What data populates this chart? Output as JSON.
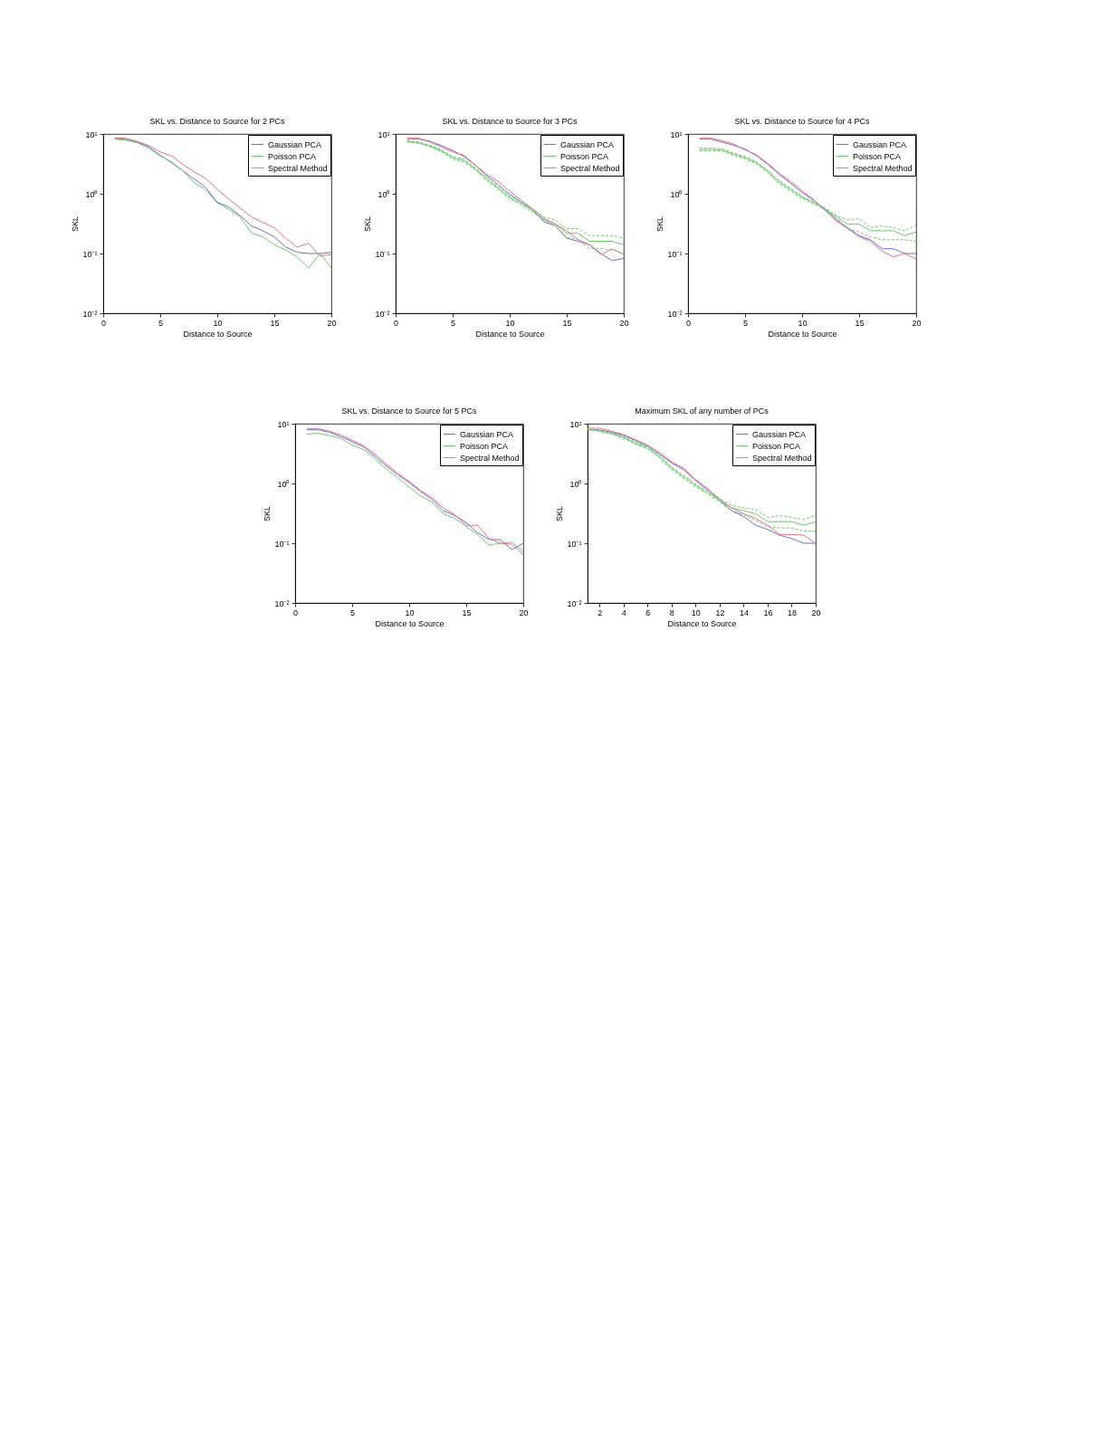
{
  "chart_data": [
    {
      "type": "line",
      "title": "SKL vs. Distance to Source for 2 PCs",
      "xlabel": "Distance to Source",
      "ylabel": "SKL",
      "log": "y",
      "legend": "top right",
      "x": [
        1,
        2,
        3,
        4,
        5,
        6,
        7,
        8,
        9,
        10,
        11,
        12,
        13,
        14,
        15,
        16,
        17,
        18,
        19,
        20
      ],
      "xlim": [
        0,
        20
      ],
      "xticks": [
        0,
        5,
        10,
        15,
        20
      ],
      "ylim": [
        0.01,
        10
      ],
      "yticks": [
        {
          "value": 0.01,
          "label": "10⁻²"
        },
        {
          "value": 0.1,
          "label": "10⁻¹"
        },
        {
          "value": 1,
          "label": "10⁰"
        },
        {
          "value": 10,
          "label": "10¹"
        }
      ],
      "series": [
        {
          "name": "Gaussian PCA",
          "color": "#6b6be6",
          "values": [
            8.4,
            8.1,
            7.3,
            6.1,
            4.4,
            3.3,
            2.4,
            1.75,
            1.27,
            0.72,
            0.6,
            0.43,
            0.29,
            0.24,
            0.19,
            0.128,
            0.105,
            0.1,
            0.1,
            0.104
          ]
        },
        {
          "name": "Poisson PCA",
          "color": "#66cc66",
          "values": [
            8.2,
            7.9,
            7.1,
            5.8,
            4.3,
            3.4,
            2.4,
            1.52,
            1.15,
            0.7,
            0.55,
            0.41,
            0.22,
            0.19,
            0.14,
            0.115,
            0.088,
            0.057,
            0.1,
            0.057
          ]
        },
        {
          "name": "Spectral Method",
          "color": "#e8707f",
          "values": [
            8.6,
            8.5,
            7.5,
            6.4,
            5.0,
            4.3,
            3.1,
            2.3,
            1.8,
            1.19,
            0.82,
            0.58,
            0.41,
            0.33,
            0.27,
            0.18,
            0.128,
            0.148,
            0.091,
            0.096
          ]
        }
      ]
    },
    {
      "type": "line",
      "title": "SKL vs. Distance to Source for 3 PCs",
      "xlabel": "Distance to Source",
      "ylabel": "SKL",
      "log": "y",
      "legend": "top right",
      "x": [
        1,
        2,
        3,
        4,
        5,
        6,
        7,
        8,
        9,
        10,
        11,
        12,
        13,
        14,
        15,
        16,
        17,
        18,
        19,
        20
      ],
      "xlim": [
        0,
        20
      ],
      "xticks": [
        0,
        5,
        10,
        15,
        20
      ],
      "ylim": [
        0.01,
        10
      ],
      "yticks": [
        {
          "value": 0.01,
          "label": "10⁻²"
        },
        {
          "value": 0.1,
          "label": "10⁻¹"
        },
        {
          "value": 1,
          "label": "10⁰"
        },
        {
          "value": 10,
          "label": "10¹"
        }
      ],
      "series": [
        {
          "name": "Gaussian PCA",
          "color": "#6b6be6",
          "values": [
            8.2,
            8.2,
            7.6,
            6.4,
            5.3,
            4.2,
            3.0,
            2.0,
            1.4,
            0.98,
            0.73,
            0.55,
            0.34,
            0.29,
            0.18,
            0.16,
            0.14,
            0.1,
            0.076,
            0.083
          ]
        },
        {
          "name": "Poisson PCA",
          "color": "#66cc66",
          "values": [
            7.5,
            7.2,
            6.3,
            5.3,
            4.0,
            3.6,
            2.6,
            1.75,
            1.24,
            0.87,
            0.69,
            0.52,
            0.37,
            0.31,
            0.22,
            0.22,
            0.16,
            0.16,
            0.16,
            0.14
          ]
        },
        {
          "name": "Spectral Method",
          "color": "#e8707f",
          "values": [
            8.6,
            8.6,
            7.3,
            6.1,
            5.0,
            4.4,
            3.0,
            2.1,
            1.6,
            1.1,
            0.78,
            0.56,
            0.39,
            0.31,
            0.24,
            0.17,
            0.14,
            0.096,
            0.12,
            0.096
          ]
        },
        {
          "color": "#66cc66",
          "line_style": "dashed",
          "values": [
            7.7,
            7.4,
            6.5,
            5.5,
            4.2,
            3.8,
            2.7,
            1.85,
            1.3,
            0.92,
            0.73,
            0.55,
            0.41,
            0.36,
            0.26,
            0.26,
            0.2,
            0.2,
            0.2,
            0.18
          ]
        },
        {
          "color": "#66cc66",
          "line_style": "dashed",
          "values": [
            7.3,
            7.0,
            6.1,
            5.1,
            3.8,
            3.4,
            2.5,
            1.65,
            1.17,
            0.82,
            0.65,
            0.49,
            0.36,
            0.29,
            0.19,
            0.17,
            0.12,
            0.12,
            0.115,
            0.1
          ]
        }
      ]
    },
    {
      "type": "line",
      "title": "SKL vs. Distance to Source for 4 PCs",
      "xlabel": "Distance to Source",
      "ylabel": "SKL",
      "log": "y",
      "legend": "top right",
      "x": [
        1,
        2,
        3,
        4,
        5,
        6,
        7,
        8,
        9,
        10,
        11,
        12,
        13,
        14,
        15,
        16,
        17,
        18,
        19,
        20
      ],
      "xlim": [
        0,
        20
      ],
      "xticks": [
        0,
        5,
        10,
        15,
        20
      ],
      "ylim": [
        0.01,
        10
      ],
      "yticks": [
        {
          "value": 0.01,
          "label": "10⁻²"
        },
        {
          "value": 0.1,
          "label": "10⁻¹"
        },
        {
          "value": 1,
          "label": "10⁰"
        },
        {
          "value": 10,
          "label": "10¹"
        }
      ],
      "series": [
        {
          "name": "Gaussian PCA",
          "color": "#6b6be6",
          "values": [
            8.2,
            8.2,
            7.3,
            6.5,
            5.6,
            4.3,
            3.1,
            2.1,
            1.5,
            1.05,
            0.78,
            0.55,
            0.37,
            0.27,
            0.2,
            0.17,
            0.12,
            0.12,
            0.1,
            0.1
          ]
        },
        {
          "name": "Poisson PCA",
          "color": "#66cc66",
          "values": [
            5.5,
            5.5,
            5.4,
            4.6,
            4.0,
            3.3,
            2.35,
            1.56,
            1.17,
            0.87,
            0.71,
            0.56,
            0.41,
            0.31,
            0.31,
            0.24,
            0.24,
            0.24,
            0.2,
            0.23
          ]
        },
        {
          "name": "Spectral Method",
          "color": "#e8707f",
          "values": [
            8.6,
            8.6,
            7.7,
            6.8,
            5.4,
            4.5,
            3.2,
            2.2,
            1.6,
            1.12,
            0.8,
            0.53,
            0.35,
            0.26,
            0.19,
            0.16,
            0.11,
            0.088,
            0.1,
            0.081
          ]
        },
        {
          "color": "#66cc66",
          "line_style": "dashed",
          "values": [
            5.8,
            5.8,
            5.7,
            4.8,
            4.2,
            3.45,
            2.45,
            1.65,
            1.23,
            0.91,
            0.74,
            0.58,
            0.43,
            0.37,
            0.38,
            0.27,
            0.29,
            0.27,
            0.24,
            0.3
          ]
        },
        {
          "color": "#66cc66",
          "line_style": "dashed",
          "values": [
            5.2,
            5.2,
            5.1,
            4.4,
            3.8,
            3.15,
            2.25,
            1.48,
            1.1,
            0.83,
            0.68,
            0.54,
            0.39,
            0.26,
            0.23,
            0.19,
            0.17,
            0.17,
            0.17,
            0.16
          ]
        }
      ]
    },
    {
      "type": "line",
      "title": "SKL vs. Distance to Source for 5 PCs",
      "xlabel": "Distance to Source",
      "ylabel": "SKL",
      "log": "y",
      "legend": "top right",
      "x": [
        1,
        2,
        3,
        4,
        5,
        6,
        7,
        8,
        9,
        10,
        11,
        12,
        13,
        14,
        15,
        16,
        17,
        18,
        19,
        20
      ],
      "xlim": [
        0,
        20
      ],
      "xticks": [
        0,
        5,
        10,
        15,
        20
      ],
      "ylim": [
        0.01,
        10
      ],
      "yticks": [
        {
          "value": 0.01,
          "label": "10⁻²"
        },
        {
          "value": 0.1,
          "label": "10⁻¹"
        },
        {
          "value": 1,
          "label": "10⁰"
        },
        {
          "value": 10,
          "label": "10¹"
        }
      ],
      "series": [
        {
          "name": "Gaussian PCA",
          "color": "#6b6be6",
          "values": [
            7.9,
            7.9,
            7.2,
            6.1,
            5.0,
            4.1,
            2.85,
            1.97,
            1.39,
            1.04,
            0.73,
            0.54,
            0.35,
            0.29,
            0.22,
            0.15,
            0.115,
            0.115,
            0.078,
            0.1
          ]
        },
        {
          "name": "Poisson PCA",
          "color": "#66cc66",
          "values": [
            6.7,
            6.9,
            6.4,
            5.7,
            4.4,
            3.7,
            2.6,
            1.75,
            1.24,
            0.87,
            0.62,
            0.49,
            0.31,
            0.26,
            0.19,
            0.14,
            0.093,
            0.1,
            0.104,
            0.072
          ]
        },
        {
          "name": "Spectral Method",
          "color": "#e8707f",
          "values": [
            8.3,
            8.3,
            7.5,
            6.5,
            5.3,
            4.3,
            3.1,
            2.1,
            1.47,
            1.08,
            0.76,
            0.58,
            0.39,
            0.3,
            0.2,
            0.2,
            0.12,
            0.1,
            0.096,
            0.064
          ]
        }
      ]
    },
    {
      "type": "line",
      "title": "Maximum SKL of any number of PCs",
      "xlabel": "Distance to Source",
      "ylabel": "SKL",
      "log": "y",
      "legend": "top right",
      "x": [
        1,
        2,
        3,
        4,
        5,
        6,
        7,
        8,
        9,
        10,
        11,
        12,
        13,
        14,
        15,
        16,
        17,
        18,
        19,
        20
      ],
      "xlim": [
        1,
        20
      ],
      "xticks": [
        2,
        4,
        6,
        8,
        10,
        12,
        14,
        16,
        18,
        20
      ],
      "ylim": [
        0.01,
        10
      ],
      "yticks": [
        {
          "value": 0.01,
          "label": "10⁻²"
        },
        {
          "value": 0.1,
          "label": "10⁻¹"
        },
        {
          "value": 1,
          "label": "10⁰"
        },
        {
          "value": 10,
          "label": "10¹"
        }
      ],
      "series": [
        {
          "name": "Gaussian PCA",
          "color": "#6b6be6",
          "values": [
            7.9,
            7.9,
            7.2,
            6.4,
            5.2,
            4.2,
            3.1,
            2.2,
            1.7,
            1.12,
            0.78,
            0.52,
            0.35,
            0.28,
            0.2,
            0.17,
            0.136,
            0.12,
            0.1,
            0.1
          ]
        },
        {
          "name": "Poisson PCA",
          "color": "#66cc66",
          "values": [
            8.1,
            7.6,
            6.9,
            5.9,
            4.7,
            4.0,
            2.8,
            1.8,
            1.3,
            0.93,
            0.71,
            0.52,
            0.39,
            0.35,
            0.31,
            0.23,
            0.23,
            0.23,
            0.2,
            0.23
          ]
        },
        {
          "name": "Spectral Method",
          "color": "#e8707f",
          "values": [
            8.4,
            8.4,
            7.5,
            6.6,
            5.4,
            4.4,
            3.3,
            2.3,
            1.8,
            1.16,
            0.82,
            0.55,
            0.39,
            0.31,
            0.26,
            0.2,
            0.14,
            0.14,
            0.136,
            0.1
          ]
        },
        {
          "color": "#66cc66",
          "line_style": "dashed",
          "values": [
            8.1,
            7.8,
            7.1,
            6.1,
            4.9,
            4.2,
            2.95,
            1.9,
            1.38,
            0.98,
            0.75,
            0.56,
            0.43,
            0.39,
            0.37,
            0.27,
            0.29,
            0.27,
            0.25,
            0.29
          ]
        },
        {
          "color": "#66cc66",
          "line_style": "dashed",
          "values": [
            8.1,
            7.4,
            6.7,
            5.7,
            4.5,
            3.8,
            2.65,
            1.7,
            1.22,
            0.88,
            0.67,
            0.49,
            0.35,
            0.3,
            0.24,
            0.19,
            0.18,
            0.18,
            0.16,
            0.16
          ]
        }
      ]
    }
  ]
}
